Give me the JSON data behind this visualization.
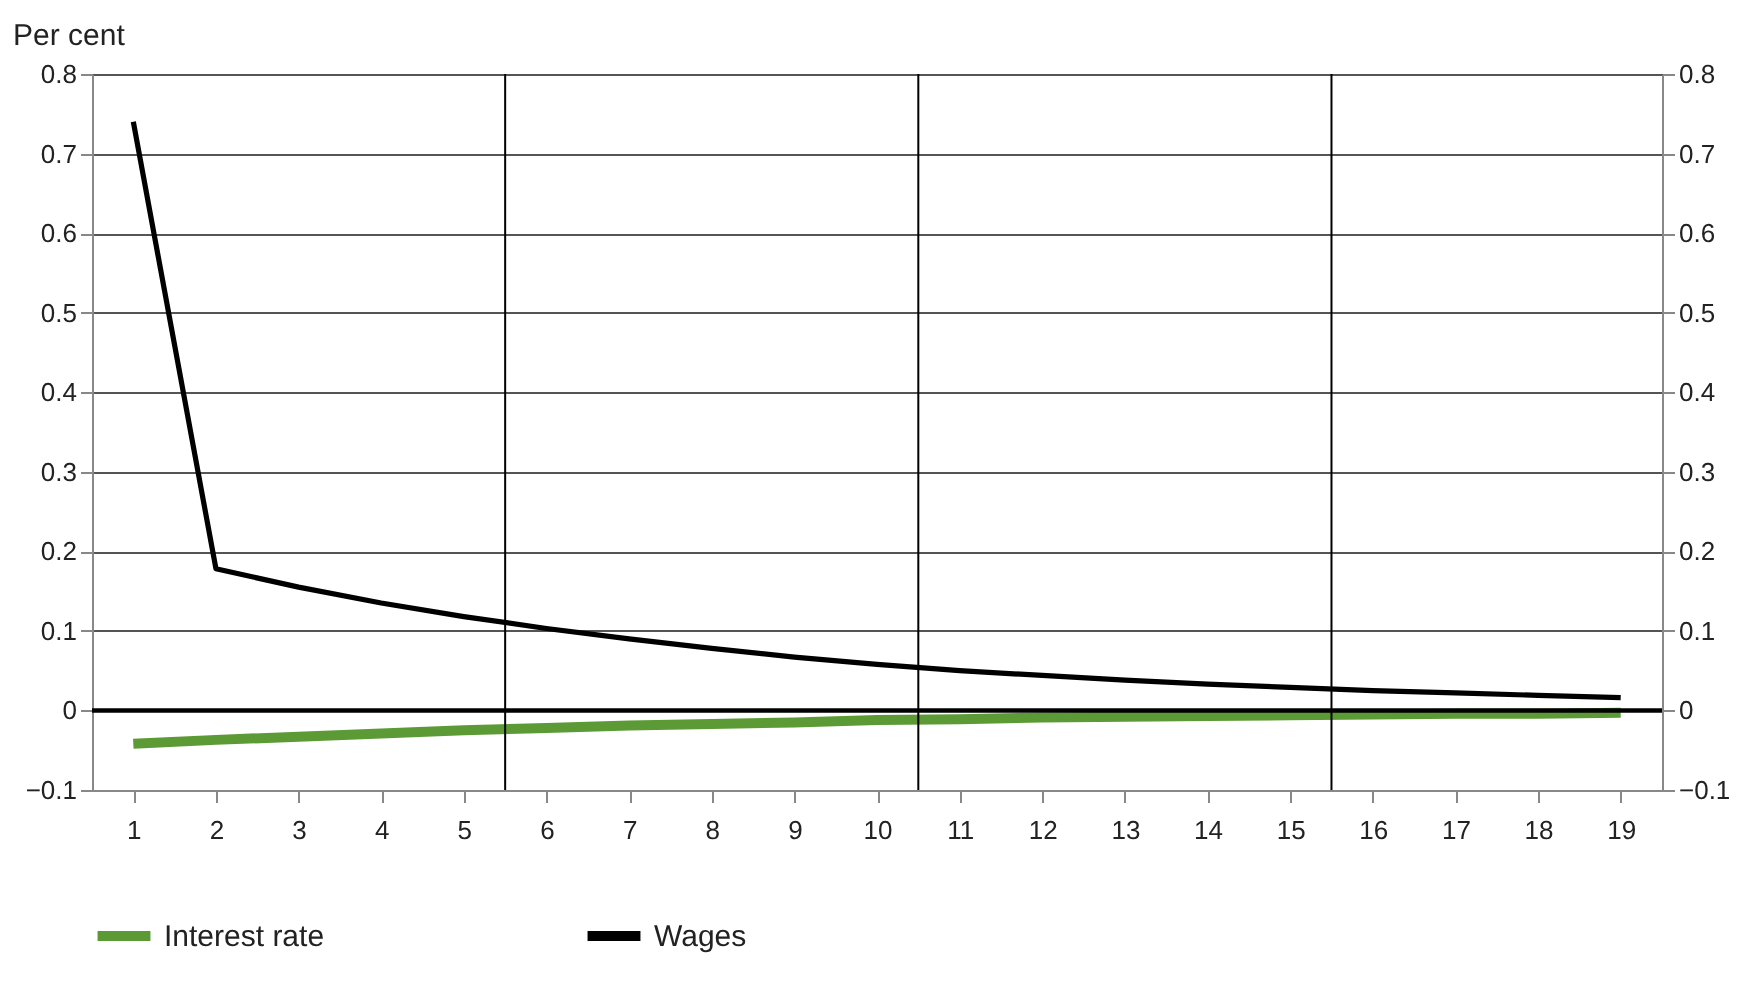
{
  "chart_data": {
    "type": "line",
    "ylabel": "Per cent",
    "x": [
      1,
      2,
      3,
      4,
      5,
      6,
      7,
      8,
      9,
      10,
      11,
      12,
      13,
      14,
      15,
      16,
      17,
      18,
      19
    ],
    "series": [
      {
        "name": "Interest rate",
        "color": "#5b9a35",
        "values": [
          -0.042,
          -0.037,
          -0.033,
          -0.029,
          -0.025,
          -0.022,
          -0.019,
          -0.017,
          -0.015,
          -0.012,
          -0.011,
          -0.009,
          -0.008,
          -0.007,
          -0.006,
          -0.005,
          -0.004,
          -0.004,
          -0.003
        ]
      },
      {
        "name": "Wages",
        "color": "#000000",
        "values": [
          0.74,
          0.178,
          0.155,
          0.135,
          0.118,
          0.103,
          0.09,
          0.078,
          0.067,
          0.058,
          0.05,
          0.044,
          0.038,
          0.033,
          0.029,
          0.025,
          0.022,
          0.019,
          0.016
        ]
      }
    ],
    "xlim": [
      0.5,
      19.5
    ],
    "xticks": [
      1,
      2,
      3,
      4,
      5,
      6,
      7,
      8,
      9,
      10,
      11,
      12,
      13,
      14,
      15,
      16,
      17,
      18,
      19
    ],
    "ylim": [
      -0.1,
      0.8
    ],
    "yticks": [
      -0.1,
      0,
      0.1,
      0.2,
      0.3,
      0.4,
      0.5,
      0.6,
      0.7,
      0.8
    ],
    "y2lim": [
      -0.1,
      0.8
    ],
    "y2ticks": [
      -0.1,
      0,
      0.1,
      0.2,
      0.3,
      0.4,
      0.5,
      0.6,
      0.7,
      0.8
    ],
    "ref_lines": [
      {
        "axis": "y",
        "value": 0,
        "color": "#000000"
      },
      {
        "axis": "x",
        "value": 5.5,
        "color": "#000000"
      },
      {
        "axis": "x",
        "value": 10.5,
        "color": "#000000"
      },
      {
        "axis": "x",
        "value": 15.5,
        "color": "#000000"
      }
    ],
    "grid": "y",
    "legend": "bottom",
    "marker": "none",
    "line_style": "solid"
  }
}
